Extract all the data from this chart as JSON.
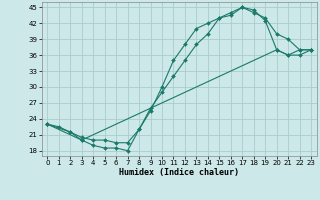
{
  "xlabel": "Humidex (Indice chaleur)",
  "bg_color": "#cce8e8",
  "grid_color": "#aacccc",
  "line_color": "#1a7a6a",
  "xlim": [
    -0.5,
    23.5
  ],
  "ylim": [
    17,
    46
  ],
  "xticks": [
    0,
    1,
    2,
    3,
    4,
    5,
    6,
    7,
    8,
    9,
    10,
    11,
    12,
    13,
    14,
    15,
    16,
    17,
    18,
    19,
    20,
    21,
    22,
    23
  ],
  "yticks": [
    18,
    21,
    24,
    27,
    30,
    33,
    36,
    39,
    42,
    45
  ],
  "line1_x": [
    0,
    1,
    2,
    3,
    4,
    5,
    6,
    7,
    8,
    9,
    10,
    11,
    12,
    13,
    14,
    15,
    16,
    17,
    18,
    19,
    20,
    21,
    22,
    23
  ],
  "line1_y": [
    23,
    22.5,
    21.5,
    20,
    19,
    18.5,
    18.5,
    18,
    22,
    25.5,
    30,
    35,
    38,
    41,
    42,
    43,
    43.5,
    45,
    44,
    43,
    40,
    39,
    37,
    37
  ],
  "line2_x": [
    0,
    2,
    3,
    4,
    5,
    6,
    7,
    8,
    9,
    10,
    11,
    12,
    13,
    14,
    15,
    16,
    17,
    18,
    19,
    20,
    21,
    22,
    23
  ],
  "line2_y": [
    23,
    21.5,
    20.5,
    20,
    20,
    19.5,
    19.5,
    22,
    26,
    29,
    32,
    35,
    38,
    40,
    43,
    44,
    45,
    44.5,
    42.5,
    37,
    36,
    36,
    37
  ],
  "line3_x": [
    0,
    3,
    20,
    21,
    22,
    23
  ],
  "line3_y": [
    23,
    20,
    37,
    36,
    37,
    37
  ]
}
